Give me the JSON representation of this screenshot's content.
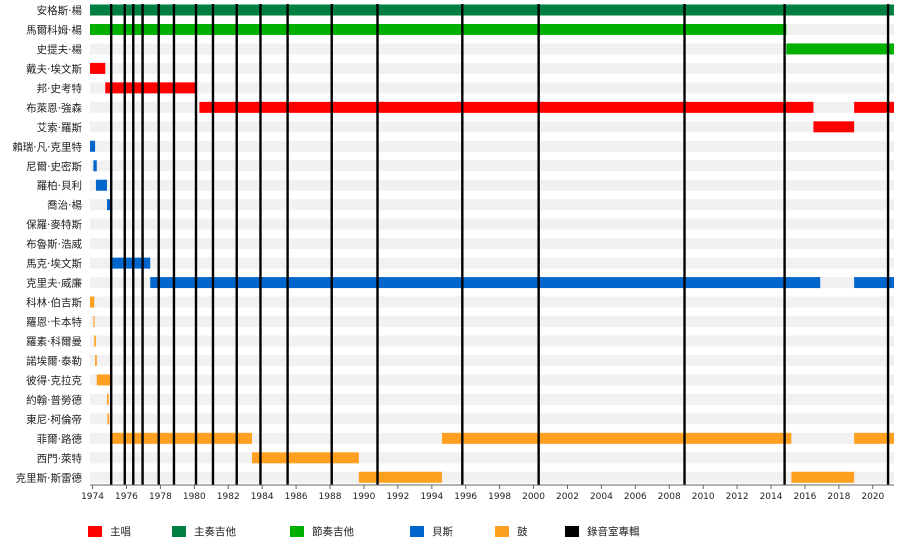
{
  "chart_data": {
    "type": "timeline",
    "title": "",
    "xlabel": "",
    "ylabel": "",
    "xlim": [
      1973.85,
      2021.25
    ],
    "xticks": [
      1974,
      1976,
      1978,
      1980,
      1982,
      1984,
      1986,
      1988,
      1990,
      1992,
      1994,
      1996,
      1998,
      2000,
      2002,
      2004,
      2006,
      2008,
      2010,
      2012,
      2014,
      2016,
      2018,
      2020
    ],
    "roles": {
      "vocals": {
        "label": "主唱",
        "color": "#ff0000"
      },
      "lead_guitar": {
        "label": "主奏吉他",
        "color": "#008040"
      },
      "rhythm_guitar": {
        "label": "節奏吉他",
        "color": "#00b000"
      },
      "bass": {
        "label": "貝斯",
        "color": "#0066cc"
      },
      "drums": {
        "label": "鼓",
        "color": "#ffa020"
      },
      "album": {
        "label": "錄音室專輯",
        "color": "#000000"
      }
    },
    "members": [
      {
        "name": "安格斯·楊",
        "bars": [
          {
            "role": "lead_guitar",
            "start": 1973.85,
            "end": 2021.25
          }
        ]
      },
      {
        "name": "馬爾科姆·楊",
        "bars": [
          {
            "role": "rhythm_guitar",
            "start": 1973.85,
            "end": 2014.9
          }
        ]
      },
      {
        "name": "史提夫·楊",
        "bars": [
          {
            "role": "rhythm_guitar",
            "start": 2014.9,
            "end": 2021.25
          }
        ]
      },
      {
        "name": "戴夫·埃文斯",
        "bars": [
          {
            "role": "vocals",
            "start": 1973.85,
            "end": 1974.75
          }
        ]
      },
      {
        "name": "邦·史考特",
        "bars": [
          {
            "role": "vocals",
            "start": 1974.75,
            "end": 1980.15
          }
        ]
      },
      {
        "name": "布萊恩·強森",
        "bars": [
          {
            "role": "vocals",
            "start": 1980.3,
            "end": 2016.5
          },
          {
            "role": "vocals",
            "start": 2018.9,
            "end": 2021.25
          }
        ]
      },
      {
        "name": "艾索·羅斯",
        "bars": [
          {
            "role": "vocals",
            "start": 2016.5,
            "end": 2018.9
          }
        ]
      },
      {
        "name": "賴瑞·凡·克里特",
        "bars": [
          {
            "role": "bass",
            "start": 1973.85,
            "end": 1974.15
          }
        ]
      },
      {
        "name": "尼爾·史密斯",
        "bars": [
          {
            "role": "bass",
            "start": 1974.05,
            "end": 1974.25
          }
        ]
      },
      {
        "name": "羅柏·貝利",
        "bars": [
          {
            "role": "bass",
            "start": 1974.2,
            "end": 1974.85
          }
        ]
      },
      {
        "name": "喬治·楊",
        "bars": [
          {
            "role": "bass",
            "start": 1974.85,
            "end": 1975.05
          }
        ]
      },
      {
        "name": "保羅·麥特斯",
        "bars": []
      },
      {
        "name": "布魯斯·浩威",
        "bars": []
      },
      {
        "name": "馬克·埃文斯",
        "bars": [
          {
            "role": "bass",
            "start": 1975.05,
            "end": 1977.4
          }
        ]
      },
      {
        "name": "克里夫·威廉",
        "bars": [
          {
            "role": "bass",
            "start": 1977.4,
            "end": 2016.9
          },
          {
            "role": "bass",
            "start": 2018.9,
            "end": 2021.25
          }
        ]
      },
      {
        "name": "科林·伯吉斯",
        "bars": [
          {
            "role": "drums",
            "start": 1973.85,
            "end": 1974.1
          }
        ]
      },
      {
        "name": "羅恩·卡本特",
        "bars": [
          {
            "role": "drums",
            "start": 1974.05,
            "end": 1974.12
          }
        ]
      },
      {
        "name": "羅素·科爾曼",
        "bars": [
          {
            "role": "drums",
            "start": 1974.1,
            "end": 1974.2
          }
        ]
      },
      {
        "name": "諾埃爾·泰勒",
        "bars": [
          {
            "role": "drums",
            "start": 1974.15,
            "end": 1974.25
          }
        ]
      },
      {
        "name": "彼得·克拉克",
        "bars": [
          {
            "role": "drums",
            "start": 1974.25,
            "end": 1975.05
          }
        ]
      },
      {
        "name": "約翰·普勞德",
        "bars": [
          {
            "role": "drums",
            "start": 1974.85,
            "end": 1974.95
          }
        ]
      },
      {
        "name": "東尼·柯倫帝",
        "bars": [
          {
            "role": "drums",
            "start": 1974.88,
            "end": 1974.98
          }
        ]
      },
      {
        "name": "菲爾·路德",
        "bars": [
          {
            "role": "drums",
            "start": 1975.05,
            "end": 1983.4
          },
          {
            "role": "drums",
            "start": 1994.6,
            "end": 2015.2
          },
          {
            "role": "drums",
            "start": 2018.9,
            "end": 2021.25
          }
        ]
      },
      {
        "name": "西門·萊特",
        "bars": [
          {
            "role": "drums",
            "start": 1983.4,
            "end": 1989.7
          }
        ]
      },
      {
        "name": "克里斯·斯雷德",
        "bars": [
          {
            "role": "drums",
            "start": 1989.7,
            "end": 1994.6
          },
          {
            "role": "drums",
            "start": 2015.2,
            "end": 2018.9
          }
        ]
      }
    ],
    "albums": [
      1975.1,
      1975.9,
      1976.4,
      1976.95,
      1977.9,
      1978.8,
      1980.1,
      1981.1,
      1982.5,
      1983.9,
      1985.5,
      1988.1,
      1990.8,
      1995.8,
      2000.3,
      2008.9,
      2014.8,
      2020.9
    ],
    "legend_order": [
      "vocals",
      "lead_guitar",
      "rhythm_guitar",
      "bass",
      "drums",
      "album"
    ]
  }
}
